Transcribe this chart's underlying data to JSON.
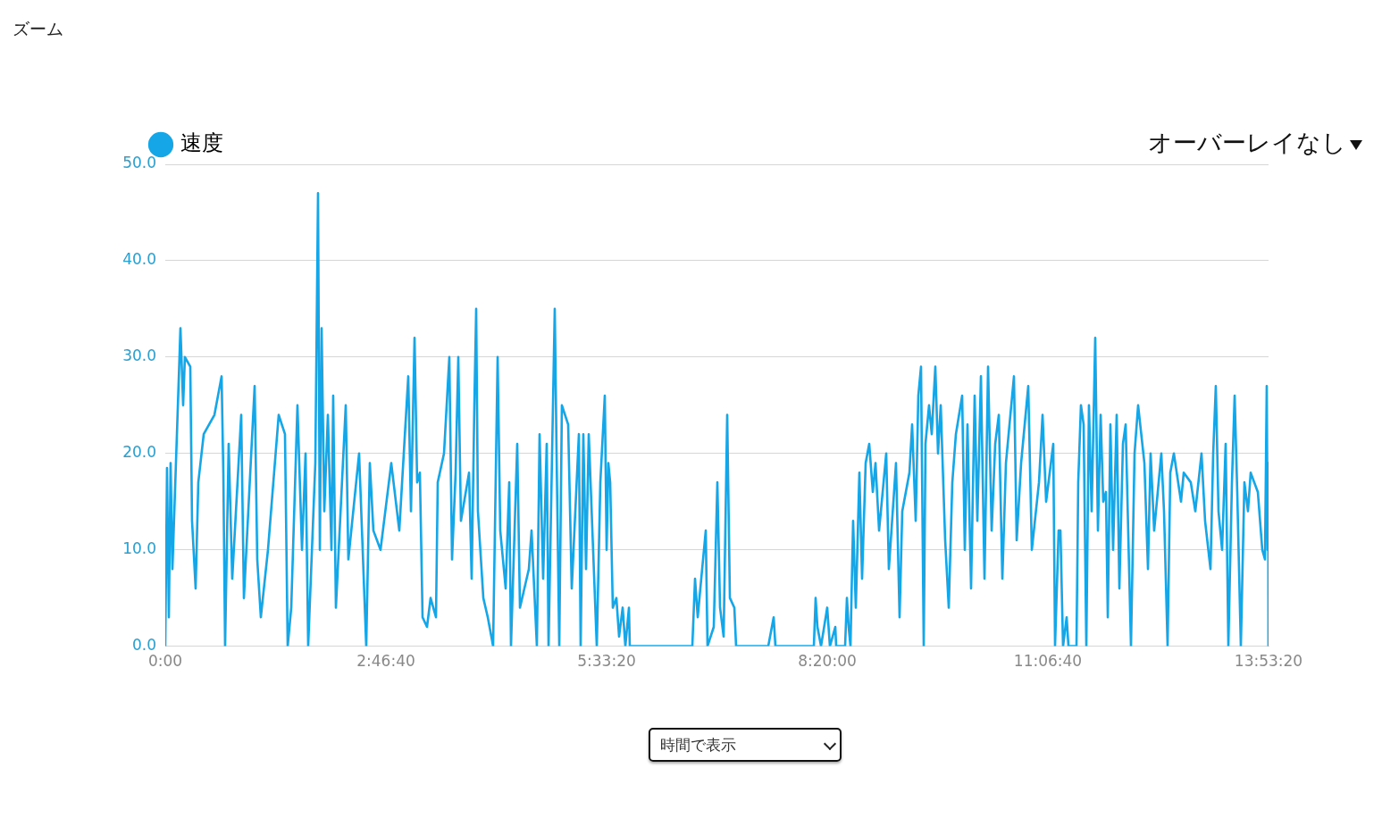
{
  "chart_data": {
    "type": "line",
    "legend": "top left",
    "grid": "y",
    "marker": "none",
    "line_style": "solid",
    "annotations": [
      "ズーム",
      "オーバーレイなし",
      "時間で表示"
    ],
    "xlim": [
      0,
      13.8889
    ],
    "xticks": [
      {
        "value": 0,
        "label": "0:00"
      },
      {
        "value": 2.7778,
        "label": "2:46:40"
      },
      {
        "value": 5.5556,
        "label": "5:33:20"
      },
      {
        "value": 8.3333,
        "label": "8:20:00"
      },
      {
        "value": 11.1111,
        "label": "11:06:40"
      },
      {
        "value": 13.8889,
        "label": "13:53:20"
      }
    ],
    "ylim": [
      0,
      50
    ],
    "yticks": [
      {
        "value": 0,
        "label": "0.0"
      },
      {
        "value": 10,
        "label": "10.0"
      },
      {
        "value": 20,
        "label": "20.0"
      },
      {
        "value": 30,
        "label": "30.0"
      },
      {
        "value": 40,
        "label": "40.0"
      },
      {
        "value": 50,
        "label": "50.0"
      }
    ],
    "x": [
      0,
      0.022,
      0.045,
      0.067,
      0.09,
      0.191,
      0.225,
      0.247,
      0.315,
      0.337,
      0.382,
      0.416,
      0.484,
      0.619,
      0.709,
      0.731,
      0.753,
      0.798,
      0.843,
      0.956,
      0.99,
      1.125,
      1.158,
      1.203,
      1.293,
      1.428,
      1.507,
      1.541,
      1.586,
      1.664,
      1.721,
      1.766,
      1.799,
      1.889,
      1.923,
      1.946,
      1.968,
      2.002,
      2.047,
      2.092,
      2.114,
      2.148,
      2.272,
      2.305,
      2.44,
      2.53,
      2.575,
      2.62,
      2.71,
      2.845,
      2.946,
      3.059,
      3.093,
      3.138,
      3.171,
      3.205,
      3.239,
      3.295,
      3.34,
      3.408,
      3.43,
      3.509,
      3.576,
      3.61,
      3.655,
      3.689,
      3.722,
      3.824,
      3.857,
      3.891,
      3.914,
      3.936,
      4.004,
      4.06,
      4.127,
      4.161,
      4.184,
      4.217,
      4.285,
      4.33,
      4.352,
      4.431,
      4.465,
      4.577,
      4.611,
      4.678,
      4.712,
      4.757,
      4.802,
      4.825,
      4.903,
      4.926,
      4.96,
      4.993,
      5.072,
      5.117,
      5.207,
      5.229,
      5.263,
      5.297,
      5.331,
      5.432,
      5.477,
      5.533,
      5.556,
      5.578,
      5.601,
      5.634,
      5.679,
      5.713,
      5.758,
      5.792,
      5.837,
      5.848,
      6.635,
      6.669,
      6.703,
      6.736,
      6.804,
      6.826,
      6.905,
      6.95,
      6.984,
      7.029,
      7.074,
      7.108,
      7.164,
      7.186,
      7.591,
      7.659,
      7.681,
      8.165,
      8.187,
      8.21,
      8.255,
      8.333,
      8.367,
      8.435,
      8.446,
      8.558,
      8.581,
      8.603,
      8.626,
      8.659,
      8.693,
      8.738,
      8.772,
      8.817,
      8.862,
      8.907,
      8.941,
      8.986,
      9.076,
      9.109,
      9.199,
      9.244,
      9.278,
      9.368,
      9.402,
      9.447,
      9.48,
      9.514,
      9.548,
      9.57,
      9.615,
      9.649,
      9.694,
      9.728,
      9.762,
      9.818,
      9.863,
      9.908,
      9.953,
      10.032,
      10.065,
      10.099,
      10.144,
      10.189,
      10.223,
      10.268,
      10.313,
      10.358,
      10.403,
      10.448,
      10.493,
      10.538,
      10.583,
      10.684,
      10.718,
      10.774,
      10.864,
      10.909,
      10.999,
      11.044,
      11.089,
      11.179,
      11.201,
      11.246,
      11.269,
      11.302,
      11.347,
      11.37,
      11.471,
      11.493,
      11.527,
      11.561,
      11.595,
      11.628,
      11.662,
      11.707,
      11.741,
      11.775,
      11.808,
      11.842,
      11.865,
      11.898,
      11.932,
      11.977,
      12.011,
      12.056,
      12.09,
      12.157,
      12.202,
      12.247,
      12.326,
      12.371,
      12.404,
      12.449,
      12.539,
      12.573,
      12.618,
      12.652,
      12.697,
      12.787,
      12.821,
      12.91,
      12.967,
      13.045,
      13.09,
      13.158,
      13.192,
      13.225,
      13.259,
      13.304,
      13.349,
      13.383,
      13.428,
      13.462,
      13.495,
      13.54,
      13.585,
      13.63,
      13.664,
      13.754,
      13.81,
      13.844,
      13.866,
      13.877,
      13.885,
      13.888
    ],
    "series": [
      {
        "name": "速度",
        "color": "#15a6e8",
        "values": [
          0,
          18.5,
          3,
          19,
          8,
          33,
          25,
          30,
          29,
          13,
          6,
          17,
          22,
          24,
          28,
          18,
          0,
          21,
          7,
          24,
          5,
          27,
          9,
          3,
          10,
          24,
          22,
          0,
          4,
          25,
          10,
          20,
          0,
          19,
          47,
          10,
          33,
          14,
          24,
          10,
          26,
          4,
          25,
          9,
          20,
          0,
          19,
          12,
          10,
          19,
          12,
          28,
          14,
          32,
          17,
          18,
          3,
          2,
          5,
          3,
          17,
          20,
          30,
          9,
          18,
          30,
          13,
          18,
          7,
          25,
          35,
          14,
          5,
          3,
          0,
          18,
          30,
          12,
          6,
          17,
          0,
          21,
          4,
          8,
          12,
          0,
          22,
          7,
          21,
          0,
          35,
          20,
          0,
          25,
          23,
          6,
          22,
          0,
          22,
          8,
          22,
          0,
          17,
          26,
          10,
          19,
          17,
          4,
          5,
          1,
          4,
          0,
          4,
          0,
          0,
          7,
          3,
          6,
          12,
          0,
          2,
          17,
          4,
          1,
          24,
          5,
          4,
          0,
          0,
          3,
          0,
          0,
          5,
          2,
          0,
          4,
          0,
          2,
          0,
          0,
          5,
          2,
          0,
          13,
          4,
          18,
          7,
          19,
          21,
          16,
          19,
          12,
          20,
          8,
          19,
          3,
          14,
          18,
          23,
          13,
          26,
          29,
          0,
          21,
          25,
          22,
          29,
          20,
          25,
          11,
          4,
          17,
          22,
          26,
          10,
          23,
          6,
          26,
          13,
          28,
          7,
          29,
          12,
          21,
          24,
          7,
          19,
          28,
          11,
          19,
          27,
          10,
          17,
          24,
          15,
          21,
          0,
          12,
          12,
          0,
          3,
          0,
          0,
          17,
          25,
          23,
          0,
          25,
          14,
          32,
          12,
          24,
          15,
          16,
          3,
          23,
          10,
          24,
          6,
          21,
          23,
          0,
          20,
          25,
          19,
          8,
          20,
          12,
          20,
          14,
          0,
          18,
          20,
          15,
          18,
          17,
          14,
          20,
          13,
          8,
          20,
          27,
          14,
          10,
          21,
          0,
          17,
          26,
          16,
          0,
          17,
          14,
          18,
          16,
          10,
          9,
          27,
          10,
          19,
          0
        ]
      }
    ]
  }
}
